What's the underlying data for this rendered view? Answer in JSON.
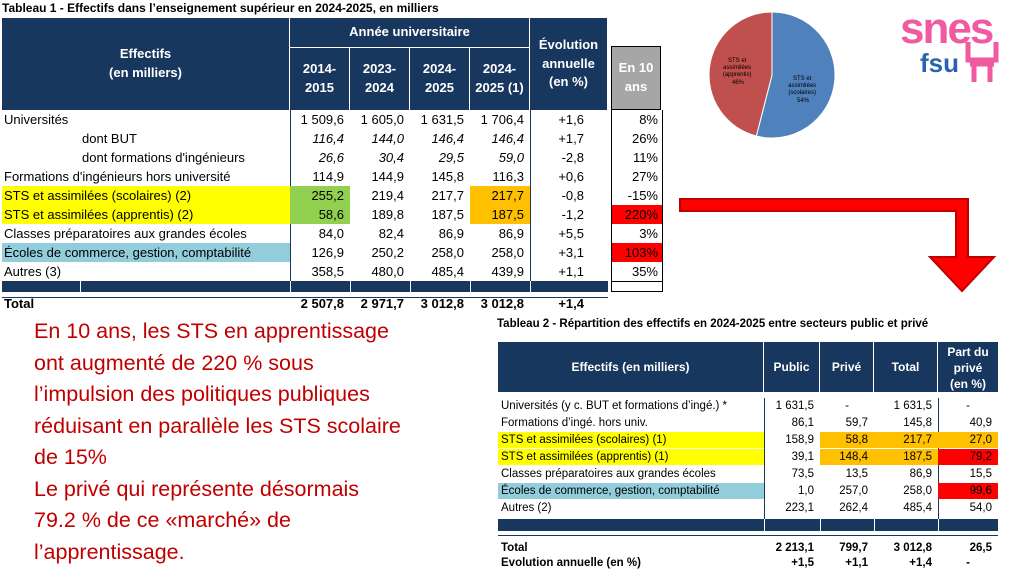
{
  "table1": {
    "title": "Tableau 1 - Effectifs dans l’enseignement supérieur en 2024-2025, en milliers",
    "header": {
      "effectifs_l1": "Effectifs",
      "effectifs_l2": "(en milliers)",
      "annee": "Année universitaire",
      "years": [
        {
          "l1": "2014-",
          "l2": "2015"
        },
        {
          "l1": "2023-",
          "l2": "2024"
        },
        {
          "l1": "2024-",
          "l2": "2025"
        },
        {
          "l1": "2024-",
          "l2": "2025 (1)"
        }
      ],
      "evol_l1": "Évolution",
      "evol_l2": "annuelle",
      "evol_l3": "(en %)",
      "ten_l1": "En 10",
      "ten_l2": "ans"
    },
    "rows": [
      {
        "label": "Universités",
        "v": [
          "1 509,6",
          "1 605,0",
          "1 631,5",
          "1 706,4"
        ],
        "evol": "+1,6",
        "ten": "8%"
      },
      {
        "label": "dont BUT",
        "v": [
          "116,4",
          "144,0",
          "146,4",
          "146,4"
        ],
        "evol": "+1,7",
        "ten": "26%"
      },
      {
        "label": "dont formations d'ingénieurs",
        "v": [
          "26,6",
          "30,4",
          "29,5",
          "59,0"
        ],
        "evol": "-2,8",
        "ten": "11%"
      },
      {
        "label": "Formations d'ingénieurs hors université",
        "v": [
          "114,9",
          "144,9",
          "145,8",
          "116,3"
        ],
        "evol": "+0,6",
        "ten": "27%"
      },
      {
        "label": "STS et assimilées (scolaires) (2)",
        "v": [
          "255,2",
          "219,4",
          "217,7",
          "217,7"
        ],
        "evol": "-0,8",
        "ten": "-15%"
      },
      {
        "label": "STS et assimilées (apprentis) (2)",
        "v": [
          "58,6",
          "189,8",
          "187,5",
          "187,5"
        ],
        "evol": "-1,2",
        "ten": "220%"
      },
      {
        "label": "Classes préparatoires aux grandes écoles",
        "v": [
          "84,0",
          "82,4",
          "86,9",
          "86,9"
        ],
        "evol": "+5,5",
        "ten": "3%"
      },
      {
        "label": "Écoles de commerce, gestion, comptabilité",
        "v": [
          "126,9",
          "250,2",
          "258,0",
          "258,0"
        ],
        "evol": "+3,1",
        "ten": "103%"
      },
      {
        "label": "Autres (3)",
        "v": [
          "358,5",
          "480,0",
          "485,4",
          "439,9"
        ],
        "evol": "+1,1",
        "ten": "35%"
      }
    ],
    "total": {
      "label": "Total",
      "v": [
        "2 507,8",
        "2 971,7",
        "3 012,8",
        "3 012,8"
      ],
      "evol": "+1,4"
    }
  },
  "commentary": {
    "lines": [
      "En 10 ans, les STS en apprentissage",
      "ont augmenté de 220 % sous",
      "l’impulsion des politiques publiques",
      "réduisant en parallèle les STS scolaire",
      "de 15%",
      "Le privé qui représente désormais",
      "79.2 % de ce «marché» de",
      "l’apprentissage."
    ]
  },
  "pie": {
    "chart_data": {
      "type": "pie",
      "categories": [
        "STS et assimilées (scolaires)",
        "STS et assimilées (apprentis)"
      ],
      "values": [
        54,
        46
      ],
      "colors": [
        "#4f81bd",
        "#c0504d"
      ]
    },
    "label_scolaires": [
      "STS et",
      "assimilées",
      "(scolaires)",
      "54%"
    ],
    "label_apprentis": [
      "STS et",
      "assimilées",
      "(apprentis)",
      "46%"
    ]
  },
  "logo": {
    "top": "snes",
    "bottom": "fsu",
    "color_top": "#f05aa0",
    "color_bottom": "#2a62b0"
  },
  "table2": {
    "title": "Tableau 2 - Répartition des effectifs en 2024-2025 entre secteurs public et privé",
    "header": {
      "effectifs": "Effectifs (en milliers)",
      "public": "Public",
      "prive": "Privé",
      "total": "Total",
      "part_l1": "Part du",
      "part_l2": "privé",
      "part_l3": "(en %)"
    },
    "rows": [
      {
        "label": "Universités (y c. BUT et formations d’ingé.) *",
        "v": [
          "1 631,5",
          "-",
          "1 631,5",
          "-"
        ]
      },
      {
        "label": "Formations d’ingé. hors univ.",
        "v": [
          "86,1",
          "59,7",
          "145,8",
          "40,9"
        ]
      },
      {
        "label": "STS et assimilées (scolaires) (1)",
        "v": [
          "158,9",
          "58,8",
          "217,7",
          "27,0"
        ]
      },
      {
        "label": "STS et assimilées (apprentis) (1)",
        "v": [
          "39,1",
          "148,4",
          "187,5",
          "79,2"
        ]
      },
      {
        "label": "Classes préparatoires aux grandes écoles",
        "v": [
          "73,5",
          "13,5",
          "86,9",
          "15,5"
        ]
      },
      {
        "label": "Écoles de commerce, gestion, comptabilité",
        "v": [
          "1,0",
          "257,0",
          "258,0",
          "99,6"
        ]
      },
      {
        "label": "Autres (2)",
        "v": [
          "223,1",
          "262,4",
          "485,4",
          "54,0"
        ]
      }
    ],
    "total": {
      "label": "Total",
      "v": [
        "2 213,1",
        "799,7",
        "3 012,8",
        "26,5"
      ]
    },
    "evolution": {
      "label": "Evolution annuelle (en %)",
      "v": [
        "+1,5",
        "+1,1",
        "+1,4",
        "-"
      ]
    }
  },
  "colors": {
    "navy": "#17375e",
    "yellow": "#ffff00",
    "green": "#92d050",
    "orange": "#ffc000",
    "red": "#ff0000",
    "lightblue": "#92cddc",
    "gray": "#a6a6a6",
    "text_red": "#c00000"
  }
}
